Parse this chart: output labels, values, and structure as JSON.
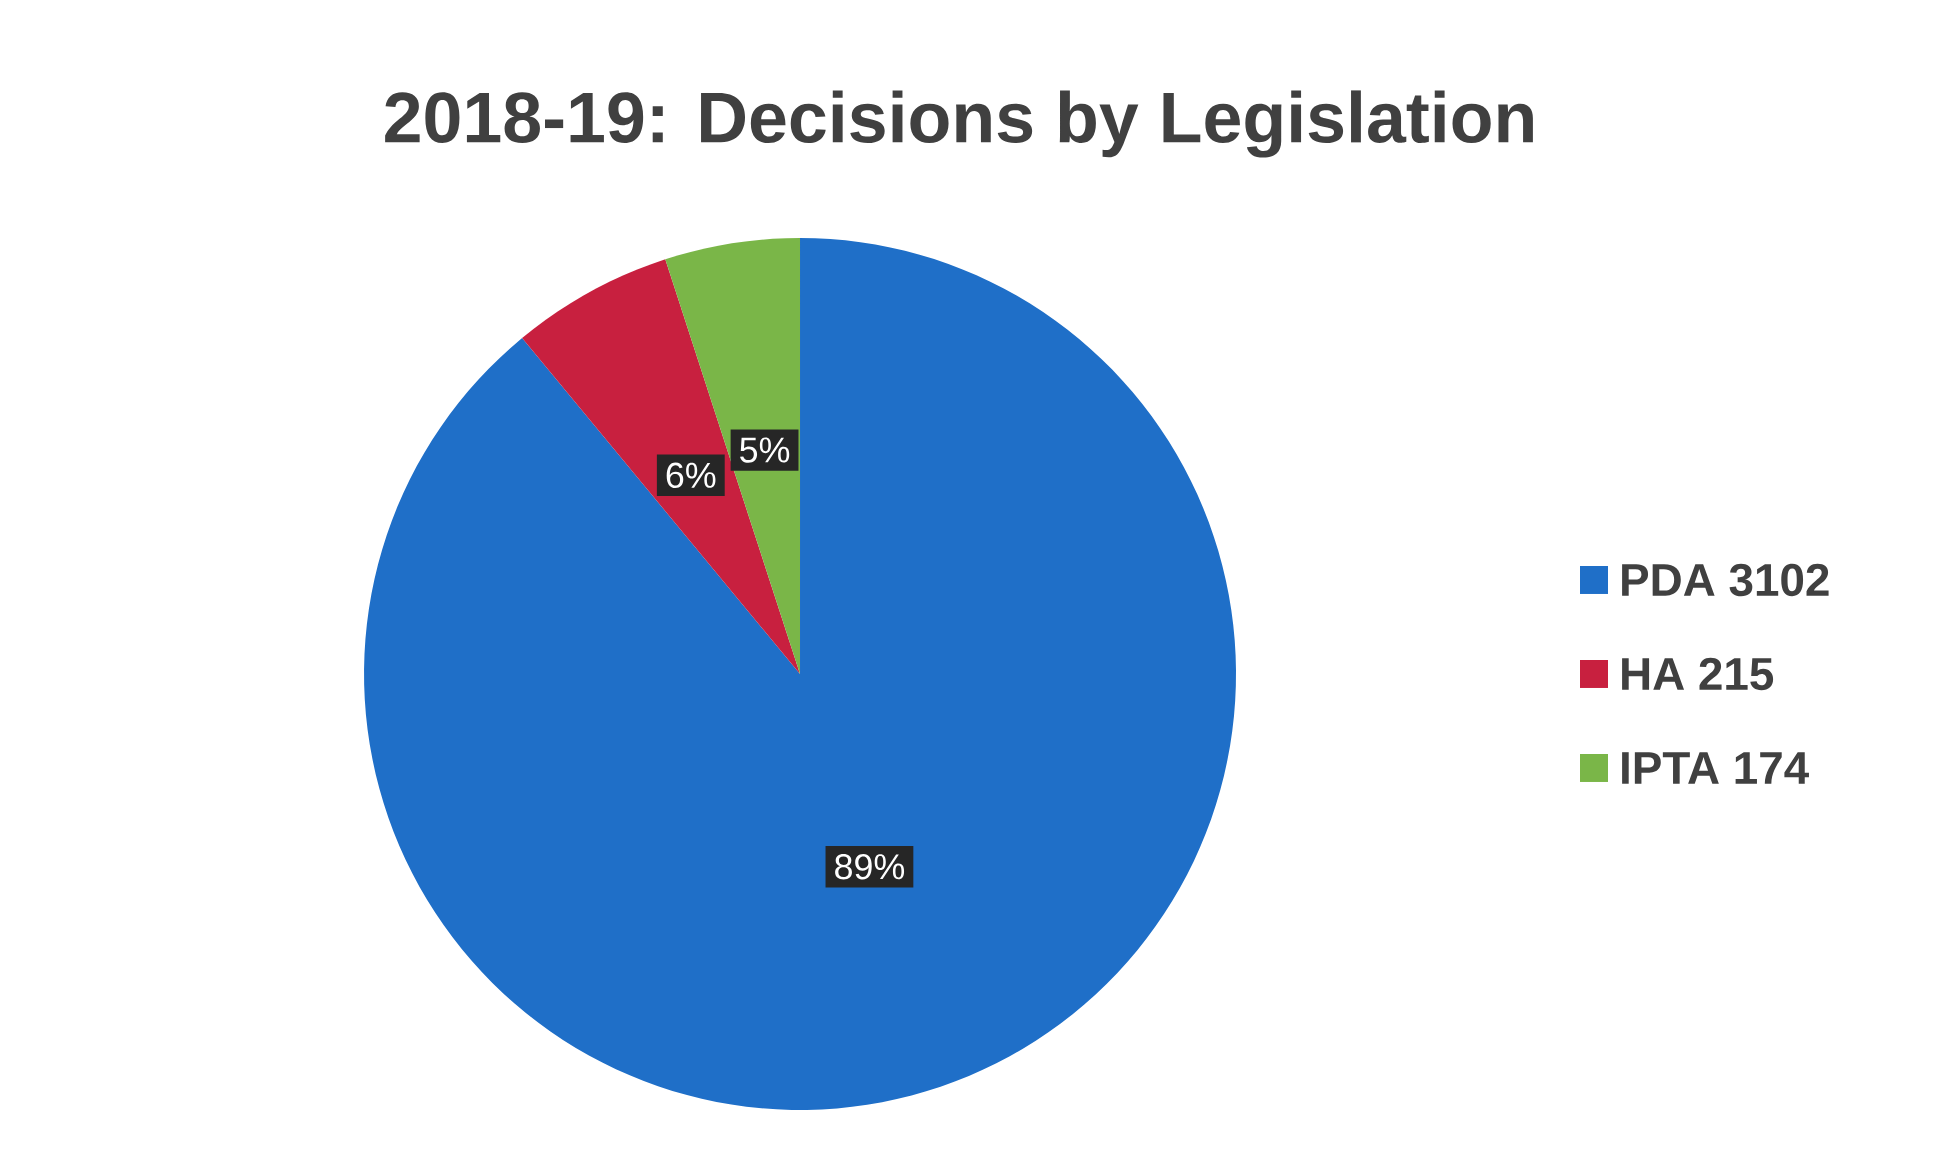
{
  "chart_data": {
    "type": "pie",
    "title": "2018-19: Decisions by Legislation",
    "categories": [
      "PDA 3102",
      "HA 215",
      "IPTA 174"
    ],
    "values": [
      89,
      6,
      5
    ],
    "value_labels": [
      "89%",
      "6%",
      "5%"
    ],
    "colors": [
      "#1f6fc8",
      "#c8203f",
      "#7ab648"
    ],
    "legend": "right"
  }
}
